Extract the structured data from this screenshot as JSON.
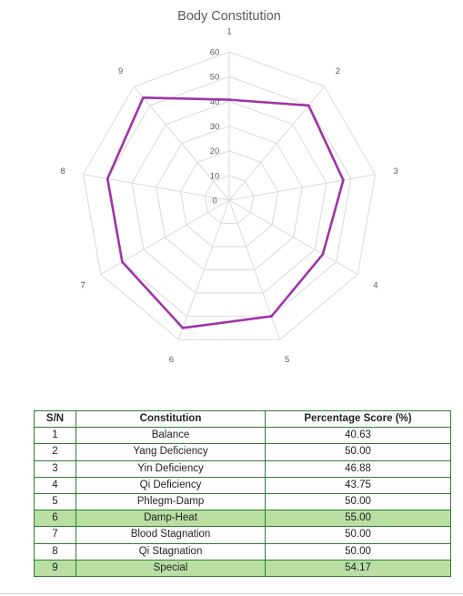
{
  "chart_data": {
    "type": "radar",
    "title": "Body Constitution",
    "categories": [
      "1",
      "2",
      "3",
      "4",
      "5",
      "6",
      "7",
      "8",
      "9"
    ],
    "series": [
      {
        "values": [
          40.63,
          50.0,
          46.88,
          43.75,
          50.0,
          55.0,
          50.0,
          50.0,
          54.17
        ]
      }
    ],
    "rlim": [
      0,
      60
    ],
    "rticks": [
      0,
      10,
      20,
      30,
      40,
      50,
      60
    ],
    "grid": true,
    "line_color": "#a033a6",
    "grid_color": "#d9d9d9"
  },
  "table": {
    "headers": [
      "S/N",
      "Constitution",
      "Percentage Score (%)"
    ],
    "rows": [
      {
        "sn": "1",
        "name": "Balance",
        "score": "40.63",
        "highlight": false
      },
      {
        "sn": "2",
        "name": "Yang Deficiency",
        "score": "50.00",
        "highlight": false
      },
      {
        "sn": "3",
        "name": "Yin Deficiency",
        "score": "46.88",
        "highlight": false
      },
      {
        "sn": "4",
        "name": "Qi Deficiency",
        "score": "43.75",
        "highlight": false
      },
      {
        "sn": "5",
        "name": "Phlegm-Damp",
        "score": "50.00",
        "highlight": false
      },
      {
        "sn": "6",
        "name": "Damp-Heat",
        "score": "55.00",
        "highlight": true
      },
      {
        "sn": "7",
        "name": "Blood Stagnation",
        "score": "50.00",
        "highlight": false
      },
      {
        "sn": "8",
        "name": "Qi Stagnation",
        "score": "50.00",
        "highlight": false
      },
      {
        "sn": "9",
        "name": "Special",
        "score": "54.17",
        "highlight": true
      }
    ],
    "highlight_color": "#b9dfa3",
    "border_color": "#2e7d32"
  }
}
